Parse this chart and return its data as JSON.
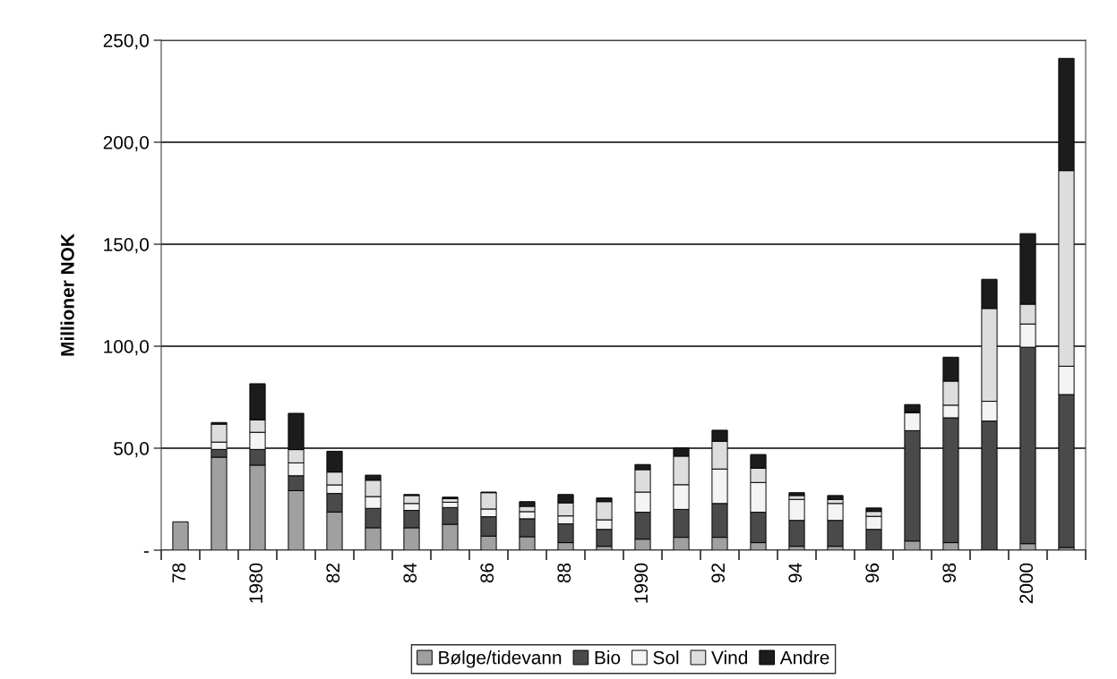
{
  "chart_data": {
    "type": "bar",
    "stacked": true,
    "ylabel": "Millioner NOK",
    "categories": [
      "78",
      null,
      "1980",
      null,
      "82",
      null,
      "84",
      null,
      "86",
      null,
      "88",
      null,
      "1990",
      null,
      "92",
      null,
      "94",
      null,
      "96",
      null,
      "98",
      null,
      "2000",
      null
    ],
    "series": [
      {
        "name": "Bølge/tidevann",
        "color": "#a0a0a0",
        "values": [
          13.9,
          45.6,
          41.7,
          29.2,
          18.7,
          11,
          11,
          12.7,
          6.9,
          6.6,
          3.7,
          1.9,
          5.4,
          6.3,
          6.3,
          3.7,
          1.9,
          1.9,
          null,
          4.5,
          3.7,
          null,
          3.2,
          1.3
        ]
      },
      {
        "name": "Bio",
        "color": "#4a4a4a",
        "values": [
          null,
          3.8,
          7.7,
          7.3,
          9.1,
          9.5,
          8.5,
          8.2,
          9.5,
          8.8,
          9.2,
          8.3,
          13.2,
          13.7,
          16.6,
          14.9,
          12.7,
          12.7,
          10.2,
          54.1,
          61.2,
          63.3,
          96.3,
          75
        ]
      },
      {
        "name": "Sol",
        "color": "#f4f4f4",
        "values": [
          null,
          3.6,
          8.4,
          6.3,
          4.2,
          5.8,
          3.4,
          2.6,
          3.8,
          3.5,
          3.9,
          4.7,
          9.9,
          12.1,
          16.9,
          14.6,
          10.3,
          8.3,
          6.4,
          8.7,
          6.2,
          9.7,
          11.4,
          13.9
        ]
      },
      {
        "name": "Vind",
        "color": "#dddddd",
        "values": [
          null,
          8.8,
          6.1,
          6.5,
          6.3,
          8,
          3.9,
          1.8,
          8,
          2.6,
          6.4,
          8.9,
          11,
          14,
          13.6,
          7,
          1.9,
          2,
          2.4,
          0.5,
          11.8,
          45.5,
          9.7,
          95.9
        ]
      },
      {
        "name": "Andre",
        "color": "#1c1c1c",
        "values": [
          null,
          0.8,
          17.7,
          17.8,
          10.2,
          2.5,
          0.5,
          0.7,
          0.3,
          2.3,
          4.1,
          1.8,
          2.5,
          4,
          5.4,
          6.7,
          1.4,
          1.9,
          1.7,
          3.6,
          11.7,
          14.3,
          34.6,
          55
        ]
      }
    ],
    "ylim": [
      0,
      250
    ],
    "yticks": [
      {
        "value": 0,
        "label": "-"
      },
      {
        "value": 50,
        "label": "50,0"
      },
      {
        "value": 100,
        "label": "100,0"
      },
      {
        "value": 150,
        "label": "150,0"
      },
      {
        "value": 200,
        "label": "200,0"
      },
      {
        "value": 250,
        "label": "250,0"
      }
    ],
    "grid": "y",
    "legend": "bottom"
  }
}
